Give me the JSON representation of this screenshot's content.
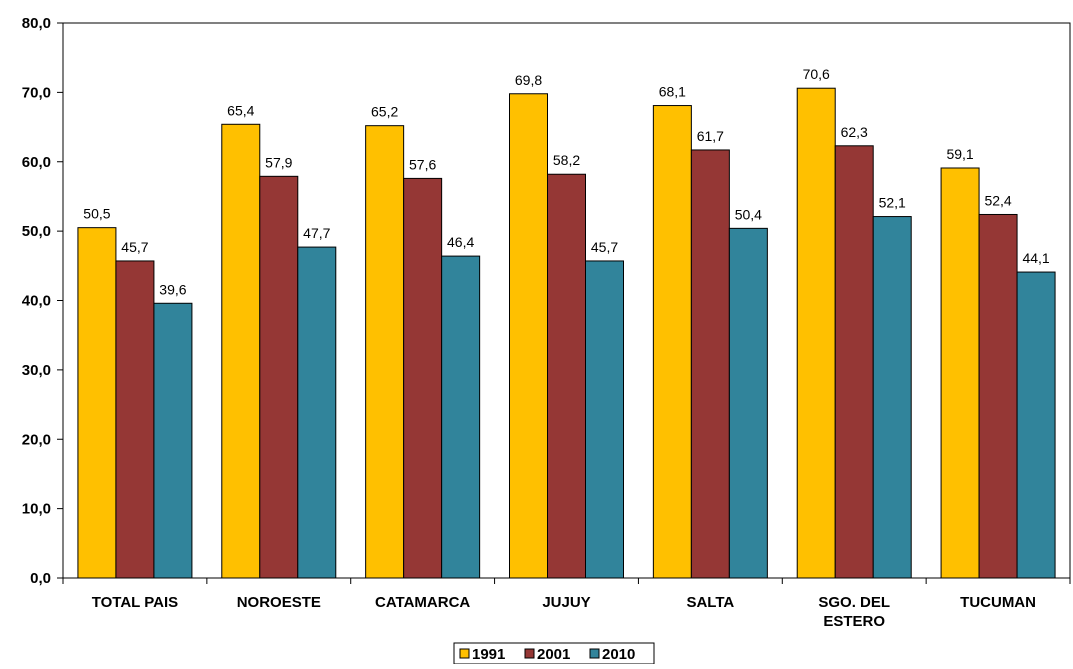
{
  "chart_data": {
    "type": "bar",
    "title": "",
    "xlabel": "",
    "ylabel": "",
    "ylim": [
      0,
      80
    ],
    "yticks": [
      "0,0",
      "10,0",
      "20,0",
      "30,0",
      "40,0",
      "50,0",
      "60,0",
      "70,0",
      "80,0"
    ],
    "categories": [
      [
        "TOTAL PAIS"
      ],
      [
        "NOROESTE"
      ],
      [
        "CATAMARCA"
      ],
      [
        "JUJUY"
      ],
      [
        "SALTA"
      ],
      [
        "SGO. DEL",
        "ESTERO"
      ],
      [
        "TUCUMAN"
      ]
    ],
    "series": [
      {
        "name": "1991",
        "color": "#FFC000",
        "values": [
          50.5,
          65.4,
          65.2,
          69.8,
          68.1,
          70.6,
          59.1
        ],
        "labels": [
          "50,5",
          "65,4",
          "65,2",
          "69,8",
          "68,1",
          "70,6",
          "59,1"
        ]
      },
      {
        "name": "2001",
        "color": "#953735",
        "values": [
          45.7,
          57.9,
          57.6,
          58.2,
          61.7,
          62.3,
          52.4
        ],
        "labels": [
          "45,7",
          "57,9",
          "57,6",
          "58,2",
          "61,7",
          "62,3",
          "52,4"
        ]
      },
      {
        "name": "2010",
        "color": "#31849B",
        "values": [
          39.6,
          47.7,
          46.4,
          45.7,
          50.4,
          52.1,
          44.1
        ],
        "labels": [
          "39,6",
          "47,7",
          "46,4",
          "45,7",
          "50,4",
          "52,1",
          "44,1"
        ]
      }
    ],
    "grid": false,
    "legend": "bottom-center"
  }
}
